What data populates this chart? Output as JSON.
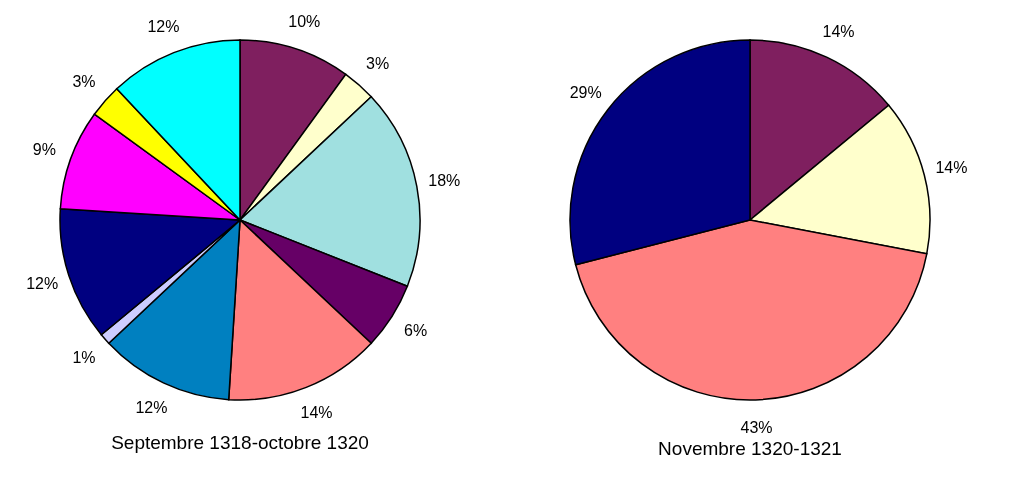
{
  "chart_data": [
    {
      "type": "pie",
      "title": "Septembre 1318-octobre 1320",
      "categories": [
        null,
        null,
        null,
        null,
        null,
        null,
        null,
        null,
        null,
        null,
        null
      ],
      "values": [
        10,
        3,
        18,
        6,
        14,
        12,
        1,
        12,
        9,
        3,
        12
      ],
      "value_labels": [
        "10%",
        "3%",
        "18%",
        "6%",
        "14%",
        "12%",
        "1%",
        "12%",
        "9%",
        "3%",
        "12%"
      ],
      "colors": [
        "#7f1f5f",
        "#ffffcc",
        "#a0e0e0",
        "#660066",
        "#ff8080",
        "#0080c0",
        "#ccccff",
        "#000080",
        "#ff00ff",
        "#ffff00",
        "#00ffff"
      ]
    },
    {
      "type": "pie",
      "title": "Novembre 1320-1321",
      "categories": [
        null,
        null,
        null,
        null
      ],
      "values": [
        14,
        14,
        43,
        29
      ],
      "value_labels": [
        "14%",
        "14%",
        "43%",
        "29%"
      ],
      "colors": [
        "#7f1f5f",
        "#ffffcc",
        "#ff8080",
        "#000080"
      ]
    }
  ]
}
